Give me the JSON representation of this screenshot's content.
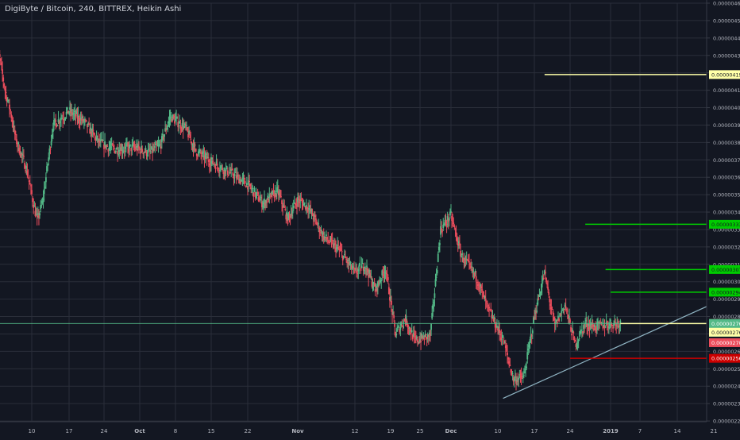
{
  "legend": {
    "title": "DigiByte / Bitcoin, 240, BITTREX, Heikin Ashi"
  },
  "colors": {
    "background": "#131722",
    "grid": "#2a2e39",
    "up": "#53b987",
    "down": "#eb4d5c",
    "axis_text": "#b2b5be",
    "trendline": "#8fb3c2",
    "yellow": "#ffffa8",
    "green": "#00cc00",
    "red": "#cc0000"
  },
  "chart_data": {
    "type": "candlestick",
    "title": "DigiByte / Bitcoin, 240, BITTREX, Heikin Ashi",
    "ylim": [
      2.2e-06,
      4.6e-06
    ],
    "y_ticks": [
      "0.00000460",
      "0.00000450",
      "0.00000440",
      "0.00000430",
      "0.00000420",
      "0.00000410",
      "0.00000400",
      "0.00000390",
      "0.00000380",
      "0.00000370",
      "0.00000360",
      "0.00000350",
      "0.00000340",
      "0.00000330",
      "0.00000320",
      "0.00000310",
      "0.00000300",
      "0.00000290",
      "0.00000280",
      "0.00000270",
      "0.00000260",
      "0.00000250",
      "0.00000240",
      "0.00000230",
      "0.00000220"
    ],
    "x_ticks": [
      "10",
      "17",
      "24",
      "Oct",
      "8",
      "15",
      "22",
      "Nov",
      "12",
      "19",
      "25",
      "Dec",
      "10",
      "17",
      "24",
      "2019",
      "7",
      "14",
      "21"
    ],
    "x_range": [
      "2018-09-03",
      "2019-01-23"
    ],
    "price_path": [
      [
        "2018-09-03",
        4.46e-06
      ],
      [
        "2018-09-05",
        4.1e-06
      ],
      [
        "2018-09-06",
        3.98e-06
      ],
      [
        "2018-09-07",
        3.82e-06
      ],
      [
        "2018-09-09",
        3.65e-06
      ],
      [
        "2018-09-11",
        3.35e-06
      ],
      [
        "2018-09-12",
        3.45e-06
      ],
      [
        "2018-09-14",
        3.9e-06
      ],
      [
        "2018-09-17",
        3.98e-06
      ],
      [
        "2018-09-20",
        3.92e-06
      ],
      [
        "2018-09-23",
        3.8e-06
      ],
      [
        "2018-09-26",
        3.76e-06
      ],
      [
        "2018-09-30",
        3.77e-06
      ],
      [
        "2018-10-03",
        3.74e-06
      ],
      [
        "2018-10-05",
        3.78e-06
      ],
      [
        "2018-10-07",
        3.95e-06
      ],
      [
        "2018-10-10",
        3.88e-06
      ],
      [
        "2018-10-12",
        3.75e-06
      ],
      [
        "2018-10-15",
        3.69e-06
      ],
      [
        "2018-10-19",
        3.62e-06
      ],
      [
        "2018-10-22",
        3.56e-06
      ],
      [
        "2018-10-25",
        3.45e-06
      ],
      [
        "2018-10-28",
        3.52e-06
      ],
      [
        "2018-10-30",
        3.36e-06
      ],
      [
        "2018-11-01",
        3.47e-06
      ],
      [
        "2018-11-03",
        3.43e-06
      ],
      [
        "2018-11-06",
        3.26e-06
      ],
      [
        "2018-11-09",
        3.18e-06
      ],
      [
        "2018-11-12",
        3.05e-06
      ],
      [
        "2018-11-14",
        3.1e-06
      ],
      [
        "2018-11-16",
        2.95e-06
      ],
      [
        "2018-11-18",
        3.08e-06
      ],
      [
        "2018-11-20",
        2.7e-06
      ],
      [
        "2018-11-22",
        2.79e-06
      ],
      [
        "2018-11-24",
        2.66e-06
      ],
      [
        "2018-11-27",
        2.69e-06
      ],
      [
        "2018-11-29",
        3.3e-06
      ],
      [
        "2018-12-01",
        3.38e-06
      ],
      [
        "2018-12-03",
        3.15e-06
      ],
      [
        "2018-12-06",
        3.02e-06
      ],
      [
        "2018-12-08",
        2.85e-06
      ],
      [
        "2018-12-11",
        2.67e-06
      ],
      [
        "2018-12-13",
        2.44e-06
      ],
      [
        "2018-12-15",
        2.45e-06
      ],
      [
        "2018-12-17",
        2.8e-06
      ],
      [
        "2018-12-19",
        3.05e-06
      ],
      [
        "2018-12-21",
        2.74e-06
      ],
      [
        "2018-12-23",
        2.87e-06
      ],
      [
        "2018-12-25",
        2.64e-06
      ],
      [
        "2018-12-27",
        2.76e-06
      ],
      [
        "2018-12-29",
        2.74e-06
      ],
      [
        "2019-01-01",
        2.76e-06
      ],
      [
        "2019-01-03",
        2.763e-06
      ]
    ],
    "trendline": [
      [
        "2018-12-11",
        2.33e-06
      ],
      [
        "2019-01-23",
        2.903e-06
      ]
    ],
    "horizontal_lines": [
      {
        "from": "2018-12-19",
        "price": 4.19e-06,
        "color": "yellow",
        "label": "0.00000419"
      },
      {
        "from": "2018-12-27",
        "price": 3.33e-06,
        "color": "green",
        "label": "0.00000333"
      },
      {
        "from": "2018-12-31",
        "price": 3.07e-06,
        "color": "green",
        "label": "0.00000307"
      },
      {
        "from": "2019-01-01",
        "price": 2.94e-06,
        "color": "green",
        "label": "0.00000294"
      },
      {
        "from": "2019-01-03",
        "price": 2.76e-06,
        "color": "yellow",
        "label": "0.00000276"
      },
      {
        "from": "2018-12-24",
        "price": 2.56e-06,
        "color": "red",
        "label": "0.00000256"
      }
    ],
    "price_labels": [
      {
        "price": 2.76e-06,
        "text": "0.00000276",
        "bg": "#53b987",
        "fg": "#ffffff"
      },
      {
        "price": 2.76e-06,
        "text": "03:42:45",
        "bg": "#53b987",
        "fg": "#ffffff",
        "offset": 1
      },
      {
        "price": 2.71e-06,
        "text": "0.00000276",
        "bg": "#ffffa8",
        "fg": "#131722"
      },
      {
        "price": 2.65e-06,
        "text": "0.00000270",
        "bg": "#eb4d5c",
        "fg": "#ffffff"
      }
    ],
    "current_price": 2.76e-06
  }
}
